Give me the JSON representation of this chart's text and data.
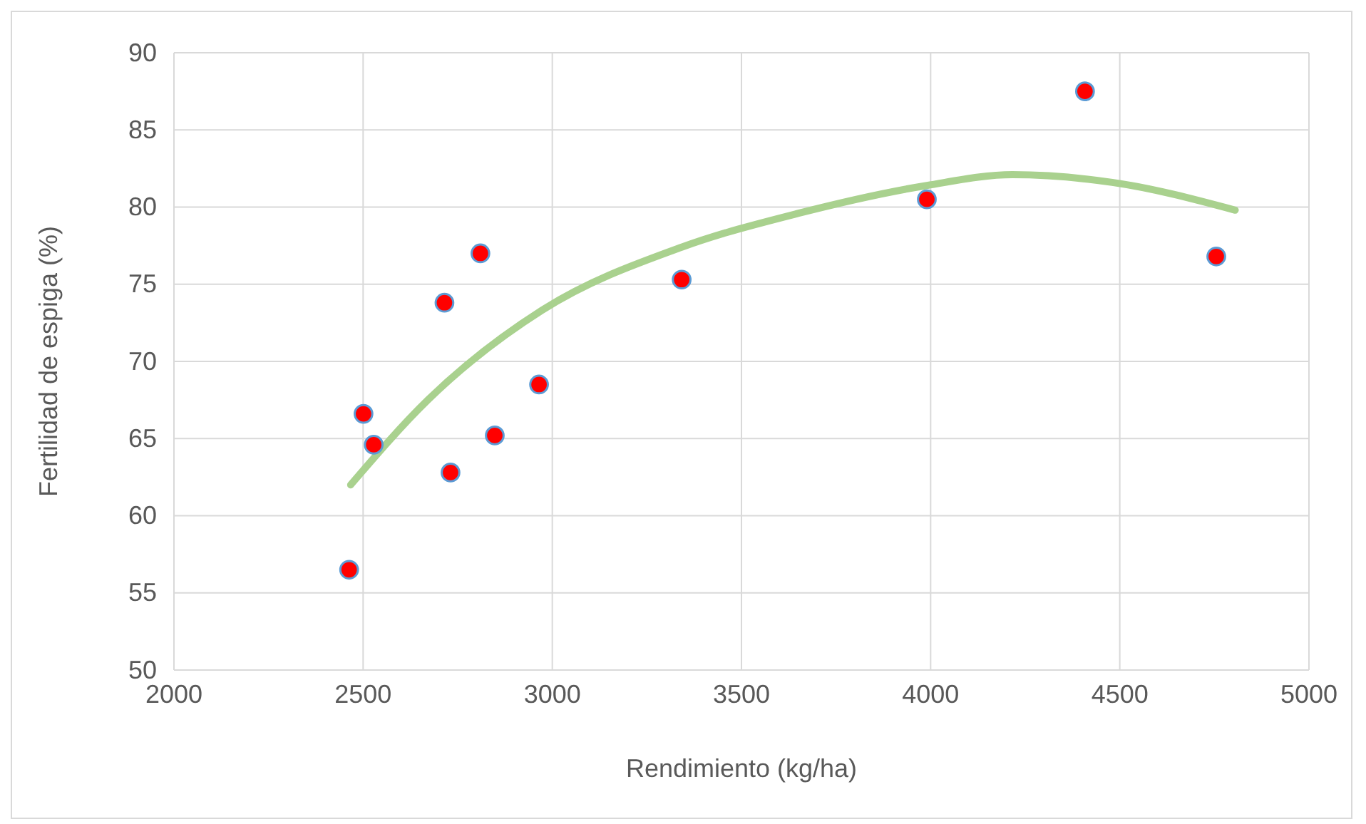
{
  "chart_data": {
    "type": "scatter",
    "xlabel": "Rendimiento (kg/ha)",
    "ylabel": "Fertilidad de espiga (%)",
    "xlim": [
      2000,
      5000
    ],
    "xticks": [
      2000,
      2500,
      3000,
      3500,
      4000,
      4500,
      5000
    ],
    "ylim": [
      50,
      90
    ],
    "yticks": [
      50,
      55,
      60,
      65,
      70,
      75,
      80,
      85,
      90
    ],
    "grid": true,
    "marker": "circle",
    "series": [
      {
        "type": "scatter",
        "color": "#ff0000",
        "x": [
          2463,
          2501,
          2528,
          2715,
          2731,
          2810,
          2848,
          2965,
          3342,
          3990,
          4408,
          4755
        ],
        "values": [
          56.5,
          66.6,
          64.6,
          73.8,
          62.8,
          77.0,
          65.2,
          68.5,
          75.3,
          80.5,
          87.5,
          76.8
        ]
      },
      {
        "type": "line",
        "color": "#a9d18e",
        "marker": "none",
        "x": [
          2467,
          2671,
          2972,
          3342,
          3651,
          3990,
          4216,
          4480,
          4805
        ],
        "values": [
          62.0,
          67.5,
          73.3,
          77.4,
          79.6,
          81.4,
          82.1,
          81.6,
          79.8
        ]
      }
    ]
  }
}
